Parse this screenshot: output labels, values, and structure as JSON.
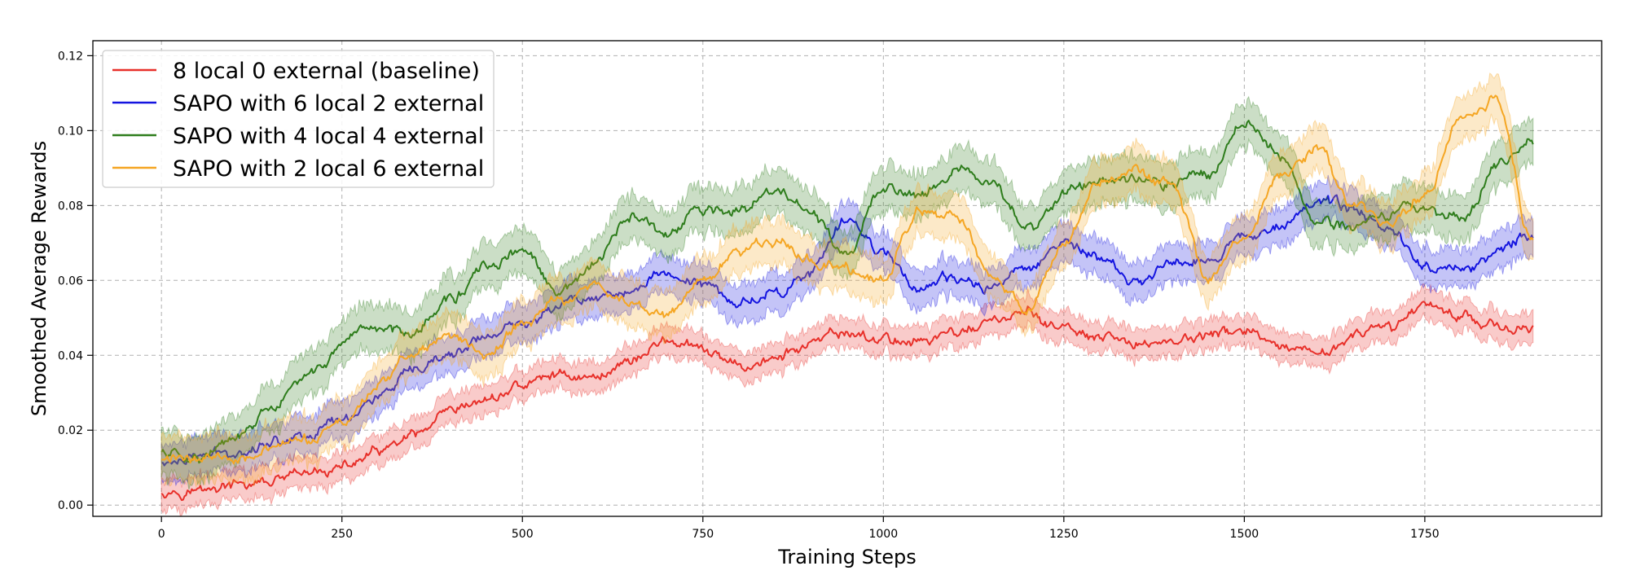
{
  "chart_data": {
    "type": "line",
    "title": "",
    "xlabel": "Training Steps",
    "ylabel": "Smoothed Average Rewards",
    "xlim": [
      -95,
      1995
    ],
    "ylim": [
      -0.003,
      0.124
    ],
    "xticks": [
      0,
      250,
      500,
      750,
      1000,
      1250,
      1500,
      1750
    ],
    "yticks": [
      0.0,
      0.02,
      0.04,
      0.06,
      0.08,
      0.1,
      0.12
    ],
    "ytick_labels": [
      "0.00",
      "0.02",
      "0.04",
      "0.06",
      "0.08",
      "0.10",
      "0.12"
    ],
    "grid": true,
    "legend_location": "top-left",
    "series": [
      {
        "name": "8 local 0 external (baseline)",
        "color": "#e8302a",
        "band": 0.004,
        "x": [
          0,
          50,
          100,
          150,
          200,
          250,
          300,
          350,
          400,
          450,
          500,
          550,
          600,
          650,
          700,
          750,
          800,
          850,
          900,
          950,
          1000,
          1050,
          1100,
          1150,
          1200,
          1250,
          1300,
          1350,
          1400,
          1450,
          1500,
          1550,
          1600,
          1650,
          1700,
          1750,
          1800,
          1850,
          1900
        ],
        "values": [
          0.004,
          0.004,
          0.005,
          0.006,
          0.008,
          0.01,
          0.014,
          0.018,
          0.024,
          0.028,
          0.032,
          0.035,
          0.034,
          0.039,
          0.044,
          0.041,
          0.037,
          0.039,
          0.043,
          0.046,
          0.044,
          0.044,
          0.046,
          0.049,
          0.051,
          0.047,
          0.044,
          0.043,
          0.044,
          0.045,
          0.047,
          0.041,
          0.04,
          0.045,
          0.047,
          0.054,
          0.051,
          0.048,
          0.046
        ]
      },
      {
        "name": "SAPO with 6 local 2 external",
        "color": "#1414e0",
        "band": 0.005,
        "x": [
          0,
          50,
          100,
          150,
          200,
          250,
          300,
          350,
          400,
          450,
          500,
          550,
          600,
          650,
          700,
          750,
          800,
          850,
          900,
          950,
          1000,
          1050,
          1100,
          1150,
          1200,
          1250,
          1300,
          1350,
          1400,
          1450,
          1500,
          1550,
          1600,
          1650,
          1700,
          1750,
          1800,
          1850,
          1900
        ],
        "values": [
          0.011,
          0.013,
          0.014,
          0.017,
          0.019,
          0.023,
          0.029,
          0.035,
          0.04,
          0.045,
          0.048,
          0.054,
          0.056,
          0.057,
          0.062,
          0.059,
          0.054,
          0.057,
          0.062,
          0.076,
          0.068,
          0.058,
          0.06,
          0.058,
          0.064,
          0.07,
          0.066,
          0.059,
          0.065,
          0.066,
          0.071,
          0.076,
          0.081,
          0.079,
          0.074,
          0.064,
          0.063,
          0.067,
          0.073
        ]
      },
      {
        "name": "SAPO with 4 local 4 external",
        "color": "#2e7d1c",
        "band": 0.006,
        "x": [
          0,
          50,
          100,
          150,
          200,
          250,
          300,
          350,
          400,
          450,
          500,
          550,
          600,
          650,
          700,
          750,
          800,
          850,
          900,
          950,
          1000,
          1050,
          1100,
          1150,
          1200,
          1250,
          1300,
          1350,
          1400,
          1450,
          1500,
          1550,
          1600,
          1650,
          1700,
          1750,
          1800,
          1850,
          1900
        ],
        "values": [
          0.014,
          0.013,
          0.017,
          0.025,
          0.034,
          0.042,
          0.047,
          0.047,
          0.055,
          0.063,
          0.068,
          0.056,
          0.064,
          0.077,
          0.072,
          0.079,
          0.078,
          0.084,
          0.078,
          0.066,
          0.085,
          0.083,
          0.09,
          0.085,
          0.074,
          0.083,
          0.087,
          0.088,
          0.086,
          0.089,
          0.102,
          0.094,
          0.076,
          0.074,
          0.078,
          0.08,
          0.076,
          0.09,
          0.098
        ]
      },
      {
        "name": "SAPO with 2 local 6 external",
        "color": "#f5a623",
        "band": 0.006,
        "x": [
          0,
          50,
          100,
          150,
          200,
          250,
          300,
          350,
          400,
          450,
          500,
          550,
          600,
          650,
          700,
          750,
          800,
          850,
          900,
          950,
          1000,
          1050,
          1100,
          1150,
          1200,
          1250,
          1300,
          1350,
          1400,
          1450,
          1500,
          1550,
          1600,
          1650,
          1700,
          1750,
          1800,
          1850,
          1900
        ],
        "values": [
          0.012,
          0.013,
          0.013,
          0.015,
          0.017,
          0.022,
          0.032,
          0.041,
          0.045,
          0.04,
          0.048,
          0.055,
          0.058,
          0.054,
          0.051,
          0.06,
          0.068,
          0.07,
          0.066,
          0.063,
          0.06,
          0.078,
          0.077,
          0.06,
          0.052,
          0.07,
          0.087,
          0.089,
          0.085,
          0.06,
          0.07,
          0.088,
          0.095,
          0.08,
          0.075,
          0.083,
          0.103,
          0.108,
          0.07
        ]
      }
    ]
  }
}
